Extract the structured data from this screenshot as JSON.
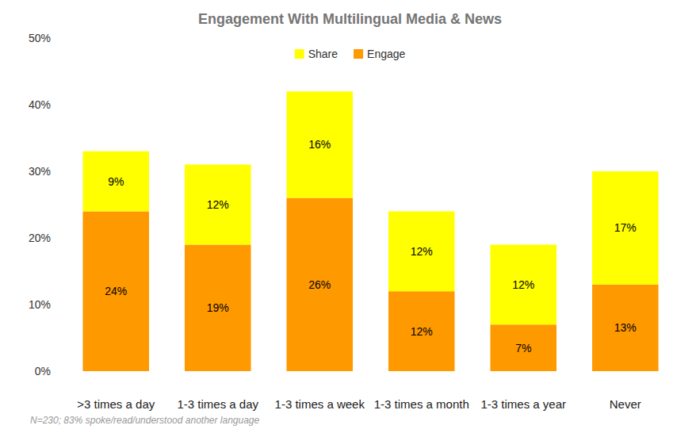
{
  "chart_data": {
    "type": "bar",
    "title": "Engagement With Multilingual Media & News",
    "footnote": "N=230; 83% spoke/read/understood another language",
    "categories": [
      ">3 times a day",
      "1-3 times a day",
      "1-3 times a week",
      "1-3 times a month",
      "1-3 times a year",
      "Never"
    ],
    "series": [
      {
        "name": "Share",
        "color": "#FFFF00",
        "values": [
          9,
          12,
          16,
          12,
          12,
          17
        ],
        "value_labels": [
          "9%",
          "12%",
          "16%",
          "12%",
          "12%",
          "17%"
        ]
      },
      {
        "name": "Engage",
        "color": "#FF9900",
        "values": [
          24,
          19,
          26,
          12,
          7,
          13
        ],
        "value_labels": [
          "24%",
          "19%",
          "26%",
          "12%",
          "7%",
          "13%"
        ]
      }
    ],
    "ylim": [
      0,
      50
    ],
    "yticks": [
      {
        "value": 0,
        "label": "0%"
      },
      {
        "value": 10,
        "label": "10%"
      },
      {
        "value": 20,
        "label": "20%"
      },
      {
        "value": 30,
        "label": "30%"
      },
      {
        "value": 40,
        "label": "40%"
      },
      {
        "value": 50,
        "label": "50%"
      }
    ],
    "stacked": true,
    "data_labels": true,
    "grid": false,
    "legend": "top"
  }
}
